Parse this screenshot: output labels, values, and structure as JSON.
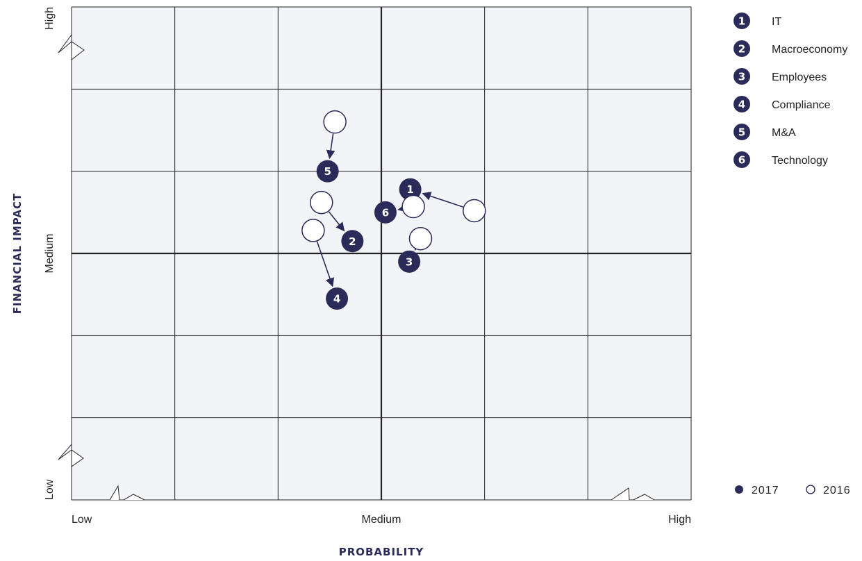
{
  "chart_data": {
    "type": "scatter",
    "xlabel": "PROBABILITY",
    "ylabel": "FINANCIAL IMPACT",
    "x_ticks": [
      "Low",
      "Medium",
      "High"
    ],
    "y_ticks": [
      "Low",
      "Medium",
      "High"
    ],
    "xlim": [
      0,
      6
    ],
    "ylim": [
      0,
      6
    ],
    "grid": true,
    "legend": {
      "items": [
        {
          "num": "1",
          "label": "IT"
        },
        {
          "num": "2",
          "label": "Macroeconomy"
        },
        {
          "num": "3",
          "label": "Employees"
        },
        {
          "num": "4",
          "label": "Compliance"
        },
        {
          "num": "5",
          "label": "M&A"
        },
        {
          "num": "6",
          "label": "Technology"
        }
      ],
      "position": "top-right"
    },
    "year_legend": {
      "filled": "2017",
      "hollow": "2016",
      "position": "bottom-right"
    },
    "points": [
      {
        "num": "1",
        "name": "IT",
        "x2017": 3.28,
        "y2017": 3.78,
        "x2016": 3.9,
        "y2016": 3.52
      },
      {
        "num": "2",
        "name": "Macroeconomy",
        "x2017": 2.72,
        "y2017": 3.15,
        "x2016": 2.42,
        "y2016": 3.62
      },
      {
        "num": "3",
        "name": "Employees",
        "x2017": 3.27,
        "y2017": 2.9,
        "x2016": 3.38,
        "y2016": 3.18
      },
      {
        "num": "4",
        "name": "Compliance",
        "x2017": 2.57,
        "y2017": 2.45,
        "x2016": 2.34,
        "y2016": 3.28
      },
      {
        "num": "5",
        "name": "M&A",
        "x2017": 2.48,
        "y2017": 4.0,
        "x2016": 2.55,
        "y2016": 4.6
      },
      {
        "num": "6",
        "name": "Technology",
        "x2017": 3.04,
        "y2017": 3.5,
        "x2016": 3.31,
        "y2016": 3.57
      }
    ]
  },
  "colors": {
    "navy": "#2b2b5a",
    "plot_bg": "#f3f4f7",
    "grid_line": "#222222"
  }
}
